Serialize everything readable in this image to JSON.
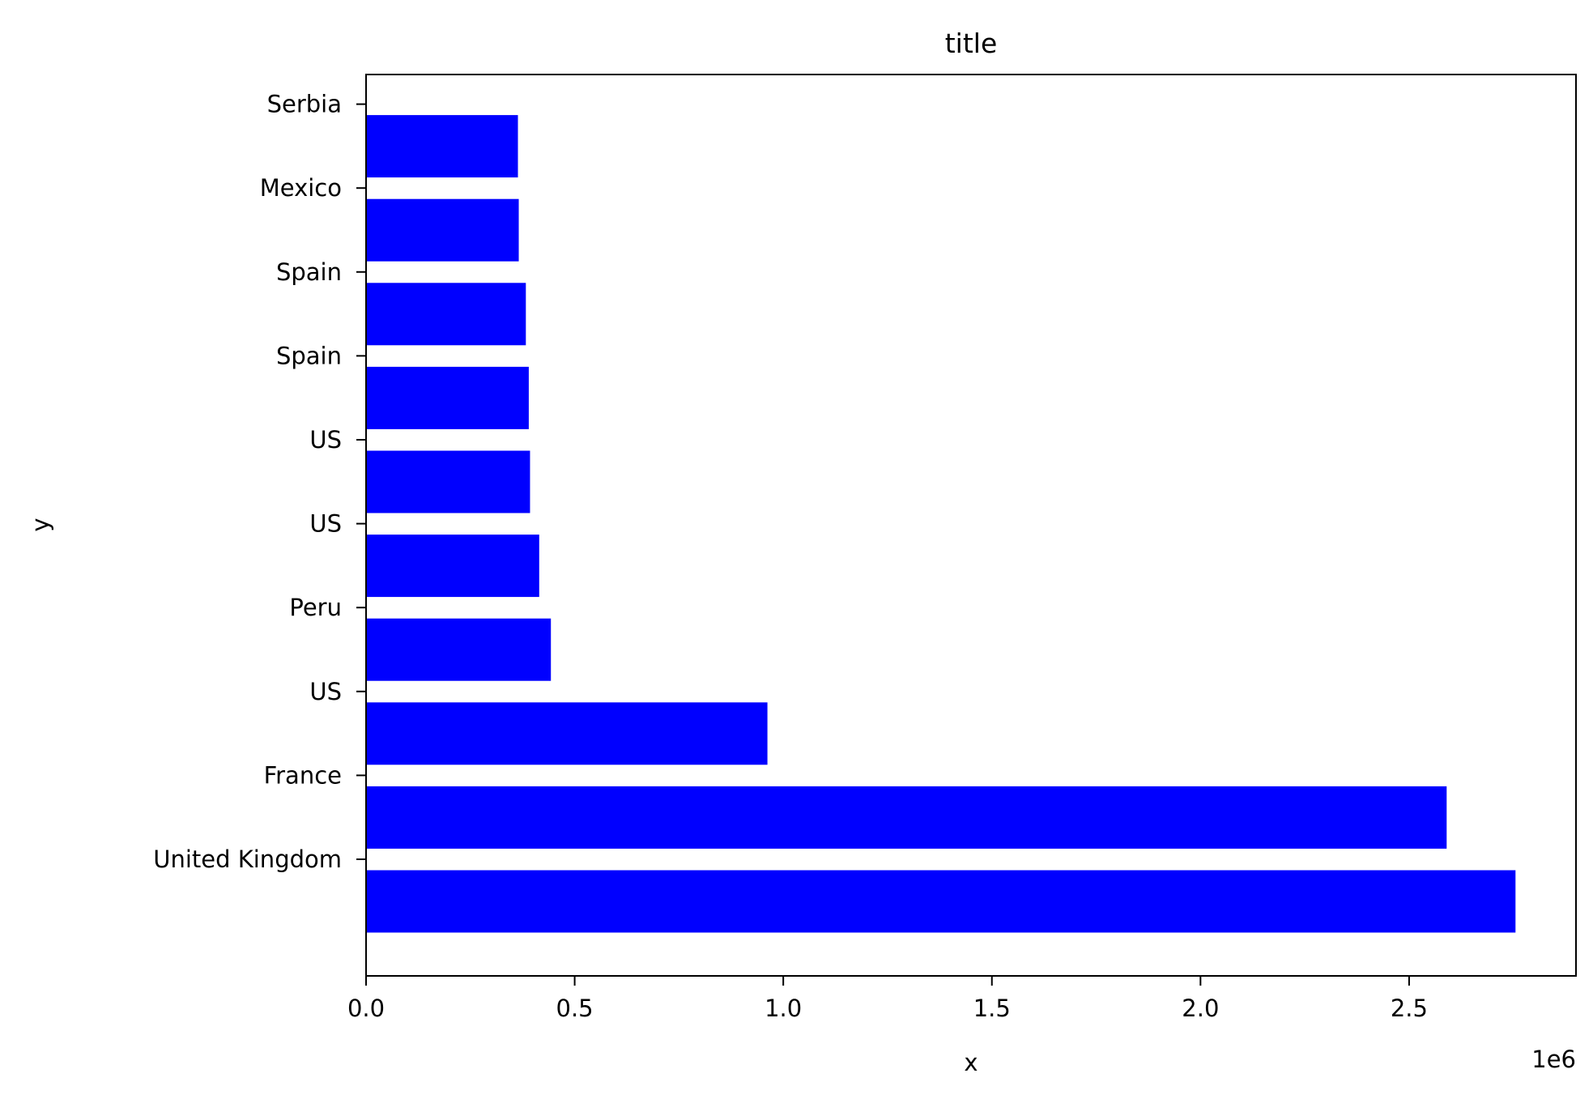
{
  "chart_data": {
    "type": "bar",
    "orientation": "horizontal",
    "title": "title",
    "xlabel": "x",
    "ylabel": "y",
    "x_offset_label": "1e6",
    "categories": [
      "United Kingdom",
      "France",
      "US",
      "Peru",
      "US",
      "US",
      "Spain",
      "Spain",
      "Mexico",
      "Serbia"
    ],
    "values": [
      2755000,
      2590000,
      962000,
      443000,
      415000,
      393000,
      390000,
      383000,
      366000,
      364000
    ],
    "xlim": [
      0,
      2900000
    ],
    "xticks": [
      0,
      500000,
      1000000,
      1500000,
      2000000,
      2500000
    ],
    "xtick_labels": [
      "0.0",
      "0.5",
      "1.0",
      "1.5",
      "2.0",
      "2.5"
    ],
    "bar_color": "#0000ff",
    "grid": false,
    "legend": "none"
  }
}
